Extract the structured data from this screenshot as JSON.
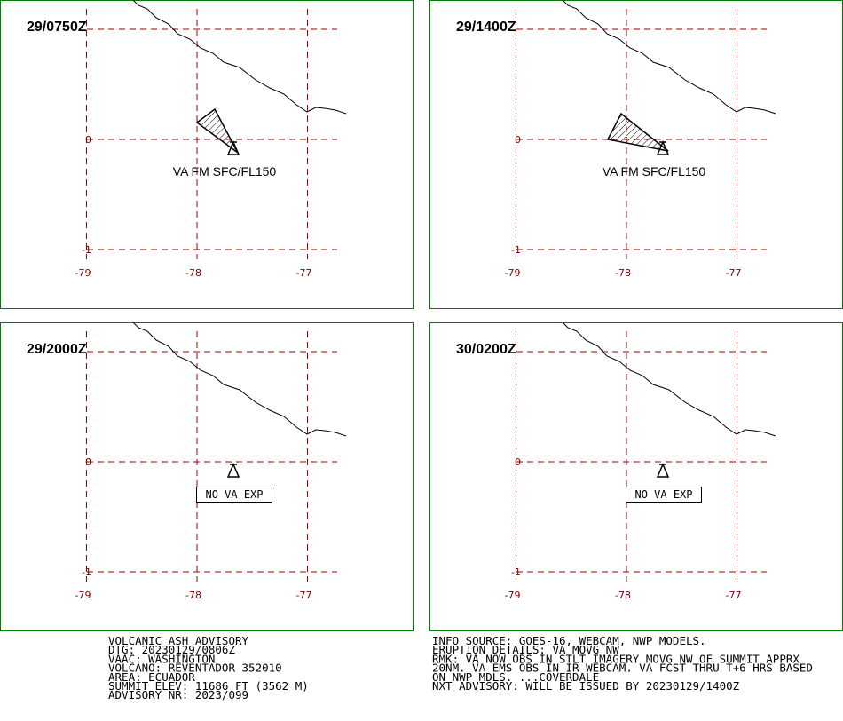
{
  "panels": [
    {
      "time": "29/0750Z",
      "annotation": "VA FM SFC/FL150",
      "lon_ticks": [
        -79,
        -78,
        -77
      ],
      "lat_ticks": [
        0,
        -1
      ]
    },
    {
      "time": "29/1400Z",
      "annotation": "VA FM SFC/FL150",
      "lon_ticks": [
        -79,
        -78,
        -77
      ],
      "lat_ticks": [
        0,
        -1
      ]
    },
    {
      "time": "29/2000Z",
      "annotation": "NO VA EXP",
      "lon_ticks": [
        -79,
        -78,
        -77
      ],
      "lat_ticks": [
        0,
        -1
      ]
    },
    {
      "time": "30/0200Z",
      "annotation": "NO VA EXP",
      "lon_ticks": [
        -79,
        -78,
        -77
      ],
      "lat_ticks": [
        0,
        -1
      ]
    }
  ],
  "advisory_left": [
    "VOLCANIC ASH ADVISORY",
    "DTG: 20230129/0806Z",
    "VAAC: WASHINGTON",
    "VOLCANO: REVENTADOR 352010",
    "AREA: ECUADOR",
    "SUMMIT ELEV: 11686 FT (3562 M)",
    "ADVISORY NR: 2023/099"
  ],
  "advisory_right": [
    "INFO SOURCE: GOES-16, WEBCAM, NWP MODELS.",
    "ERUPTION DETAILS: VA MOVG NW",
    "RMK: VA NOW OBS IN STLT IMAGERY MOVG NW OF SUMMIT APPRX",
    "20NM. VA EMS OBS IN IR WEBCAM. VA FCST THRU T+6 HRS BASED",
    "ON NWP MDLS. ...COVERDALE",
    "NXT ADVISORY: WILL BE ISSUED BY 20230129/1400Z"
  ]
}
